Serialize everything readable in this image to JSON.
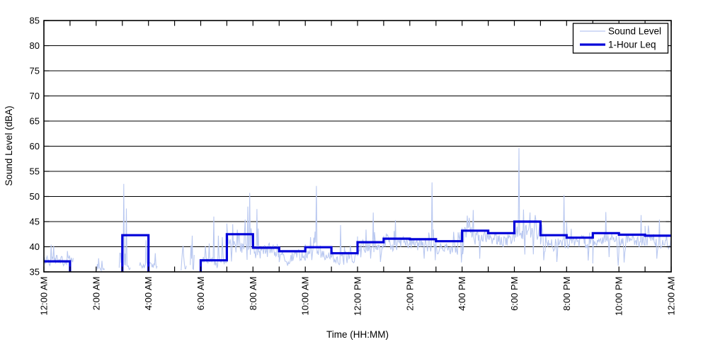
{
  "figure": {
    "background": "#ffffff",
    "frame_color": "#000000"
  },
  "chart_data": {
    "type": "line",
    "title": "",
    "xlabel": "Time (HH:MM)",
    "ylabel": "Sound Level (dBA)",
    "ylim": [
      35,
      85
    ],
    "yticks": [
      35,
      40,
      45,
      50,
      55,
      60,
      65,
      70,
      75,
      80,
      85
    ],
    "x_hours_range": [
      0,
      24
    ],
    "xticks": [
      {
        "hour": 0,
        "label": "12:00 AM"
      },
      {
        "hour": 2,
        "label": "2:00 AM"
      },
      {
        "hour": 4,
        "label": "4:00 AM"
      },
      {
        "hour": 6,
        "label": "6:00 AM"
      },
      {
        "hour": 8,
        "label": "8:00 AM"
      },
      {
        "hour": 10,
        "label": "10:00 AM"
      },
      {
        "hour": 12,
        "label": "12:00 PM"
      },
      {
        "hour": 14,
        "label": "2:00 PM"
      },
      {
        "hour": 16,
        "label": "4:00 PM"
      },
      {
        "hour": 18,
        "label": "6:00 PM"
      },
      {
        "hour": 20,
        "label": "8:00 PM"
      },
      {
        "hour": 22,
        "label": "10:00 PM"
      },
      {
        "hour": 24,
        "label": "12:00 AM"
      }
    ],
    "minor_xtick_every_hours": 1,
    "grid": {
      "horizontal": true,
      "vertical": false,
      "color": "#000000"
    },
    "legend": {
      "position": "top-right",
      "entries": [
        {
          "label": "Sound Level",
          "color": "#b9c8f0",
          "line_width": 1.2
        },
        {
          "label": "1-Hour Leq",
          "color": "#0000d9",
          "line_width": 3.2
        }
      ]
    },
    "series": [
      {
        "name": "Sound Level",
        "type": "noisy_minute_line",
        "color": "#b9c8f0",
        "width": 1.1,
        "seed": 20240613,
        "sample_step_minutes": 1.5,
        "segments_hours_base_amp_spikeprob_spikemax": [
          [
            0.0,
            1.13,
            37.2,
            1.2,
            0.1,
            40.6
          ],
          [
            2.02,
            2.32,
            35.5,
            0.35,
            0.2,
            37.8
          ],
          [
            2.88,
            3.32,
            35.8,
            0.8,
            0.15,
            43.0
          ],
          [
            3.66,
            4.34,
            36.2,
            1.0,
            0.12,
            41.5
          ],
          [
            5.25,
            5.46,
            35.7,
            0.55,
            0.3,
            40.4
          ],
          [
            5.6,
            5.76,
            35.9,
            0.65,
            0.35,
            42.2
          ],
          [
            6.05,
            7.0,
            37.2,
            1.3,
            0.06,
            45.0
          ],
          [
            7.0,
            8.0,
            40.2,
            2.3,
            0.1,
            47.0
          ],
          [
            8.0,
            9.0,
            38.9,
            2.0,
            0.07,
            46.0
          ],
          [
            9.0,
            10.0,
            38.0,
            1.7,
            0.05,
            44.0
          ],
          [
            10.0,
            11.0,
            38.7,
            1.9,
            0.06,
            45.5
          ],
          [
            11.0,
            12.0,
            37.9,
            1.6,
            0.05,
            44.0
          ],
          [
            12.0,
            13.0,
            39.7,
            1.9,
            0.07,
            45.5
          ],
          [
            13.0,
            14.0,
            40.4,
            2.0,
            0.07,
            45.8
          ],
          [
            14.0,
            15.0,
            40.3,
            2.0,
            0.06,
            46.0
          ],
          [
            15.0,
            16.0,
            39.9,
            1.9,
            0.06,
            45.2
          ],
          [
            16.0,
            17.0,
            42.0,
            2.1,
            0.07,
            46.8
          ],
          [
            17.0,
            18.0,
            41.4,
            2.0,
            0.06,
            46.2
          ],
          [
            18.0,
            19.0,
            42.9,
            2.3,
            0.1,
            47.5
          ],
          [
            19.0,
            20.0,
            40.9,
            2.1,
            0.07,
            46.5
          ],
          [
            20.0,
            21.0,
            40.7,
            1.9,
            0.05,
            45.2
          ],
          [
            21.0,
            22.0,
            41.7,
            2.0,
            0.06,
            46.5
          ],
          [
            22.0,
            23.0,
            41.3,
            1.9,
            0.05,
            46.0
          ],
          [
            23.0,
            24.0,
            41.2,
            1.9,
            0.05,
            45.5
          ]
        ],
        "notable_spikes_hour_dBA": [
          [
            0.27,
            40.4
          ],
          [
            0.38,
            40.2
          ],
          [
            2.1,
            37.7
          ],
          [
            2.22,
            37.2
          ],
          [
            3.06,
            52.5
          ],
          [
            3.16,
            47.6
          ],
          [
            3.9,
            41.3
          ],
          [
            5.33,
            40.2
          ],
          [
            5.68,
            42.2
          ],
          [
            6.5,
            46.0
          ],
          [
            7.8,
            48.0
          ],
          [
            7.87,
            50.7
          ],
          [
            8.16,
            47.5
          ],
          [
            10.43,
            52.1
          ],
          [
            11.35,
            44.3
          ],
          [
            12.6,
            46.8
          ],
          [
            13.45,
            45.3
          ],
          [
            14.85,
            52.8
          ],
          [
            16.2,
            46.2
          ],
          [
            16.42,
            47.3
          ],
          [
            18.18,
            59.6
          ],
          [
            18.35,
            47.4
          ],
          [
            18.6,
            46.8
          ],
          [
            19.9,
            50.3
          ],
          [
            21.5,
            46.9
          ],
          [
            22.85,
            46.3
          ],
          [
            23.55,
            45.4
          ]
        ]
      },
      {
        "name": "1-Hour Leq",
        "type": "hourly_step",
        "color": "#0000d9",
        "width": 3.2,
        "baseline_dBA": 35,
        "hourly_leq_dBA": [
          37.1,
          null,
          null,
          42.3,
          null,
          null,
          37.3,
          42.5,
          39.8,
          39.1,
          39.9,
          38.7,
          40.9,
          41.6,
          41.5,
          41.1,
          43.2,
          42.7,
          45.0,
          42.3,
          41.8,
          42.7,
          42.4,
          42.2
        ]
      }
    ]
  }
}
